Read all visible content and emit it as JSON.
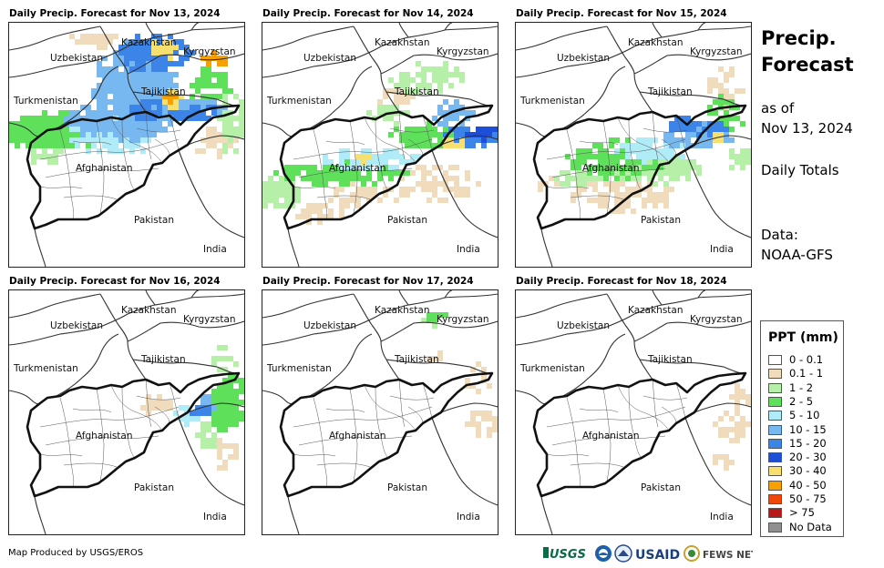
{
  "panels": [
    {
      "title": "Daily Precip. Forecast for Nov 13, 2024",
      "day": 0
    },
    {
      "title": "Daily Precip. Forecast for Nov 14, 2024",
      "day": 1
    },
    {
      "title": "Daily Precip. Forecast for Nov 15, 2024",
      "day": 2
    },
    {
      "title": "Daily Precip. Forecast for Nov 16, 2024",
      "day": 3
    },
    {
      "title": "Daily Precip. Forecast for Nov 17, 2024",
      "day": 4
    },
    {
      "title": "Daily Precip. Forecast for Nov 18, 2024",
      "day": 5
    }
  ],
  "map_labels": {
    "kazakhstan": "Kazakhstan",
    "kyrgyzstan": "Kyrgyzstan",
    "uzbekistan": "Uzbekistan",
    "tajikistan": "Tajikistan",
    "turkmenistan": "Turkmenistan",
    "afghanistan": "Afghanistan",
    "pakistan": "Pakistan",
    "india": "India"
  },
  "side": {
    "title_line1": "Precip.",
    "title_line2": "Forecast",
    "asof_line1": "as of",
    "asof_line2": "Nov 13, 2024",
    "totals": "Daily Totals",
    "data_line1": "Data:",
    "data_line2": "NOAA-GFS"
  },
  "legend": {
    "title": "PPT (mm)",
    "items": [
      {
        "label": "0 - 0.1",
        "color": "#ffffff"
      },
      {
        "label": "0.1 - 1",
        "color": "#f0dcbc"
      },
      {
        "label": "1 - 2",
        "color": "#b6f0a8"
      },
      {
        "label": "2 - 5",
        "color": "#5fe05a"
      },
      {
        "label": "5 - 10",
        "color": "#b0ecf8"
      },
      {
        "label": "10 - 15",
        "color": "#78b8f0"
      },
      {
        "label": "15 - 20",
        "color": "#3c84e8"
      },
      {
        "label": "20 - 30",
        "color": "#1c4ed8"
      },
      {
        "label": "30 - 40",
        "color": "#f8e070"
      },
      {
        "label": "40 - 50",
        "color": "#f8a000"
      },
      {
        "label": "50 - 75",
        "color": "#f04808"
      },
      {
        "label": "> 75",
        "color": "#b81818"
      },
      {
        "label": "No Data",
        "color": "#909090"
      }
    ]
  },
  "footer": {
    "credit": "Map Produced by USGS/EROS",
    "logos": [
      "USGS",
      "NOAA",
      "DOI",
      "USAID",
      "FEWS NET"
    ]
  }
}
